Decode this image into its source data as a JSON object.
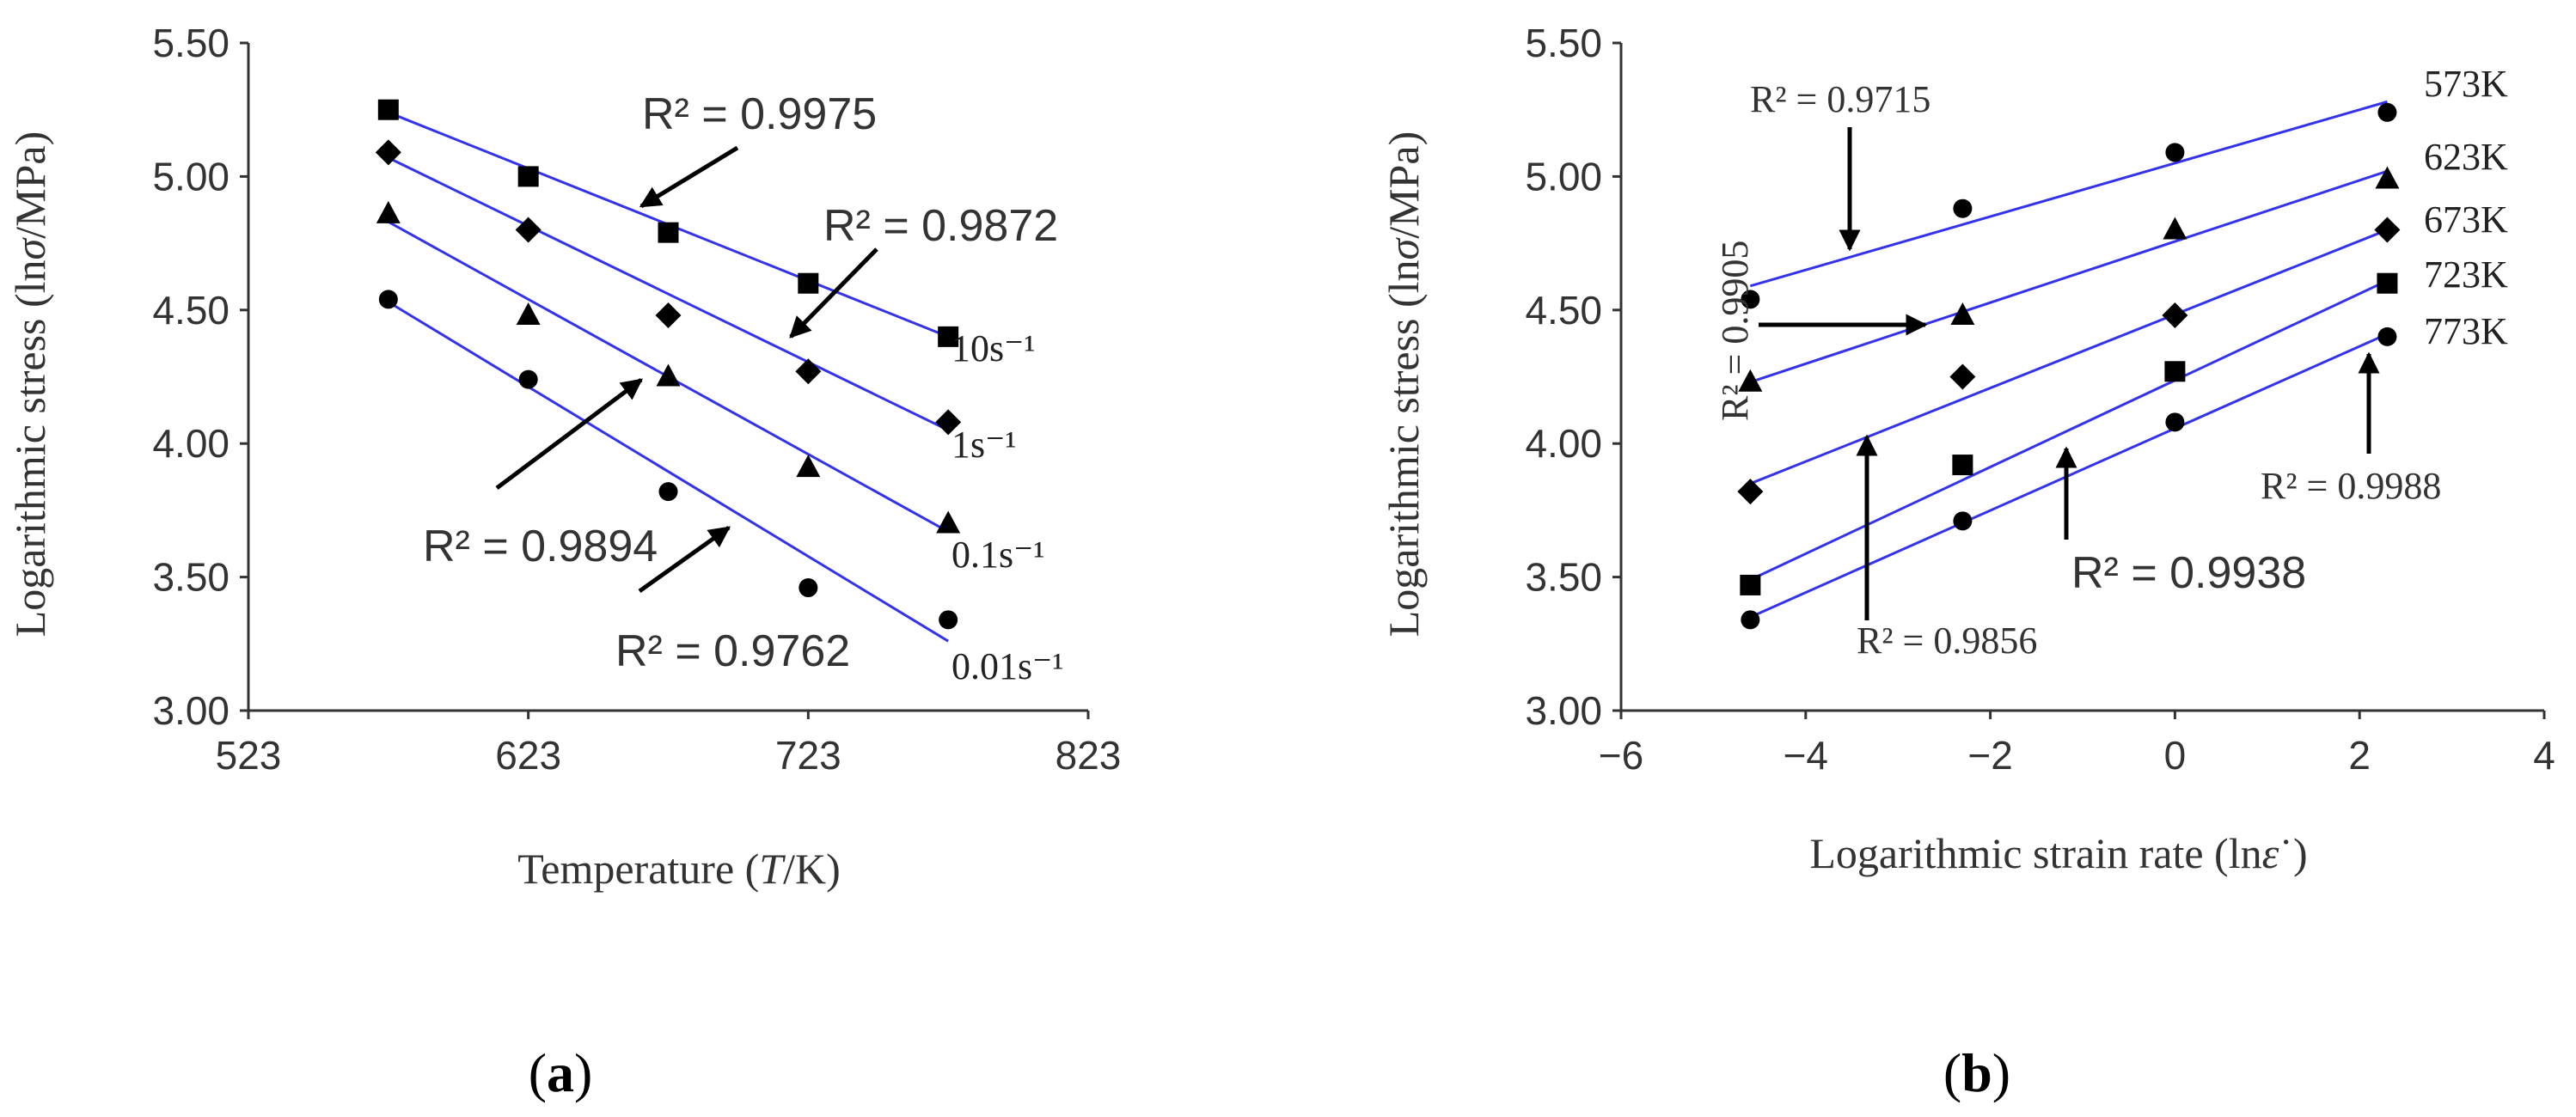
{
  "chart_data": [
    {
      "type": "scatter",
      "caption": "(a)",
      "caption_letter": "a",
      "xlabel": "Temperature (T/K)",
      "xlabel_parts": [
        "Temperature (",
        "T",
        "/K)"
      ],
      "ylabel": "Logarithmic stress (lnσ/MPa)",
      "ylabel_parts": [
        "Logarithmic stress (ln",
        "σ",
        "/MPa)"
      ],
      "xlim": [
        523,
        823
      ],
      "ylim": [
        3.0,
        5.5
      ],
      "xticks": [
        "523",
        "623",
        "723",
        "823"
      ],
      "yticks": [
        "3.00",
        "3.50",
        "4.00",
        "4.50",
        "5.00",
        "5.50"
      ],
      "x": [
        573,
        623,
        673,
        723,
        773
      ],
      "line_color": "#3333ee",
      "series": [
        {
          "name": "10s⁻¹",
          "marker": "square",
          "values": [
            5.25,
            5.0,
            4.79,
            4.6,
            4.4
          ],
          "fit": [
            5.24,
            4.4
          ]
        },
        {
          "name": "1s⁻¹",
          "marker": "diamond",
          "values": [
            5.09,
            4.8,
            4.48,
            4.27,
            4.08
          ],
          "fit": [
            5.07,
            4.05
          ]
        },
        {
          "name": "0.1s⁻¹",
          "marker": "triangle",
          "values": [
            4.86,
            4.48,
            4.25,
            3.91,
            3.7
          ],
          "fit": [
            4.83,
            3.67
          ]
        },
        {
          "name": "0.01s⁻¹",
          "marker": "circle",
          "values": [
            4.54,
            4.24,
            3.82,
            3.46,
            3.34
          ],
          "fit": [
            4.53,
            3.26
          ]
        }
      ],
      "annotations": [
        "R² = 0.9975",
        "R² = 0.9872",
        "R² = 0.9894",
        "R² = 0.9762"
      ]
    },
    {
      "type": "scatter",
      "caption": "(b)",
      "caption_letter": "b",
      "xlabel": "Logarithmic strain rate (lnε˙)",
      "xlabel_parts": [
        "Logarithmic strain rate (ln",
        "ε",
        "˙)"
      ],
      "ylabel": "Logarithmic stress (lnσ/MPa)",
      "ylabel_parts": [
        "Logarithmic stress (ln",
        "σ",
        "/MPa)"
      ],
      "xlim": [
        -6,
        4
      ],
      "ylim": [
        3.0,
        5.5
      ],
      "xticks": [
        "−6",
        "−4",
        "−2",
        "0",
        "2",
        "4"
      ],
      "yticks": [
        "3.00",
        "3.50",
        "4.00",
        "4.50",
        "5.00",
        "5.50"
      ],
      "x": [
        -4.6,
        -2.3,
        0,
        2.3
      ],
      "line_color": "#3333ee",
      "series": [
        {
          "name": "573K",
          "marker": "circle",
          "values": [
            4.54,
            4.88,
            5.09,
            5.24
          ],
          "fit": [
            4.59,
            5.28
          ]
        },
        {
          "name": "623K",
          "marker": "triangle",
          "values": [
            4.23,
            4.48,
            4.8,
            4.99
          ],
          "fit": [
            4.23,
            5.02
          ]
        },
        {
          "name": "673K",
          "marker": "diamond",
          "values": [
            3.82,
            4.25,
            4.48,
            4.8
          ],
          "fit": [
            3.85,
            4.8
          ]
        },
        {
          "name": "723K",
          "marker": "square",
          "values": [
            3.47,
            3.92,
            4.27,
            4.6
          ],
          "fit": [
            3.49,
            4.61
          ]
        },
        {
          "name": "773K",
          "marker": "circle",
          "values": [
            3.34,
            3.71,
            4.08,
            4.4
          ],
          "fit": [
            3.35,
            4.41
          ]
        }
      ],
      "annotations": [
        "R² = 0.9715",
        "R² = 0.9905",
        "R² = 0.9856",
        "R² = 0.9938",
        "R² = 0.9988"
      ]
    }
  ]
}
